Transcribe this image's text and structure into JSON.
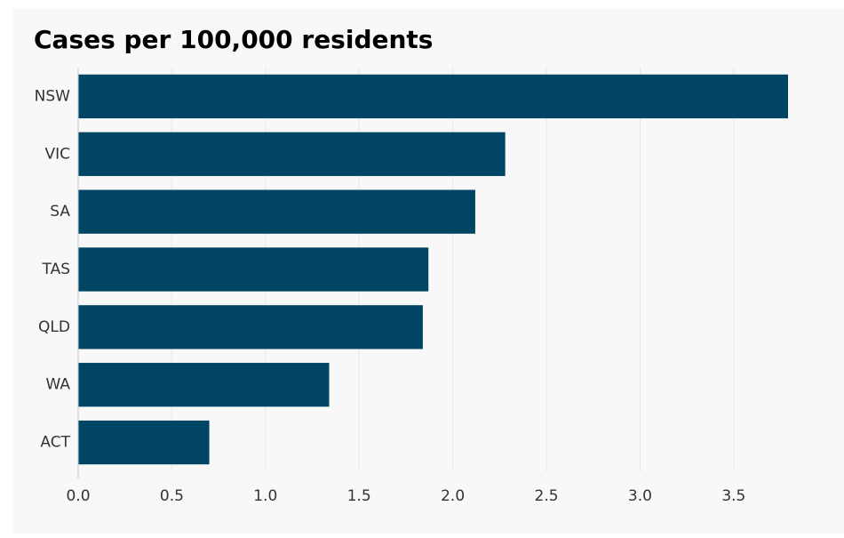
{
  "chart_data": {
    "type": "bar",
    "orientation": "horizontal",
    "title": "Cases per 100,000 residents",
    "xlabel": "",
    "ylabel": "",
    "categories": [
      "NSW",
      "VIC",
      "SA",
      "TAS",
      "QLD",
      "WA",
      "ACT"
    ],
    "values": [
      3.79,
      2.28,
      2.12,
      1.87,
      1.84,
      1.34,
      0.7
    ],
    "xlim": [
      0,
      3.79
    ],
    "x_ticks": [
      "0.0",
      "0.5",
      "1.0",
      "1.5",
      "2.0",
      "2.5",
      "3.0",
      "3.5"
    ],
    "grid": "vertical",
    "legend": "none",
    "colors": {
      "bar": "#004563",
      "grid": "#e8e8e8",
      "background": "#f8f8f8"
    }
  }
}
